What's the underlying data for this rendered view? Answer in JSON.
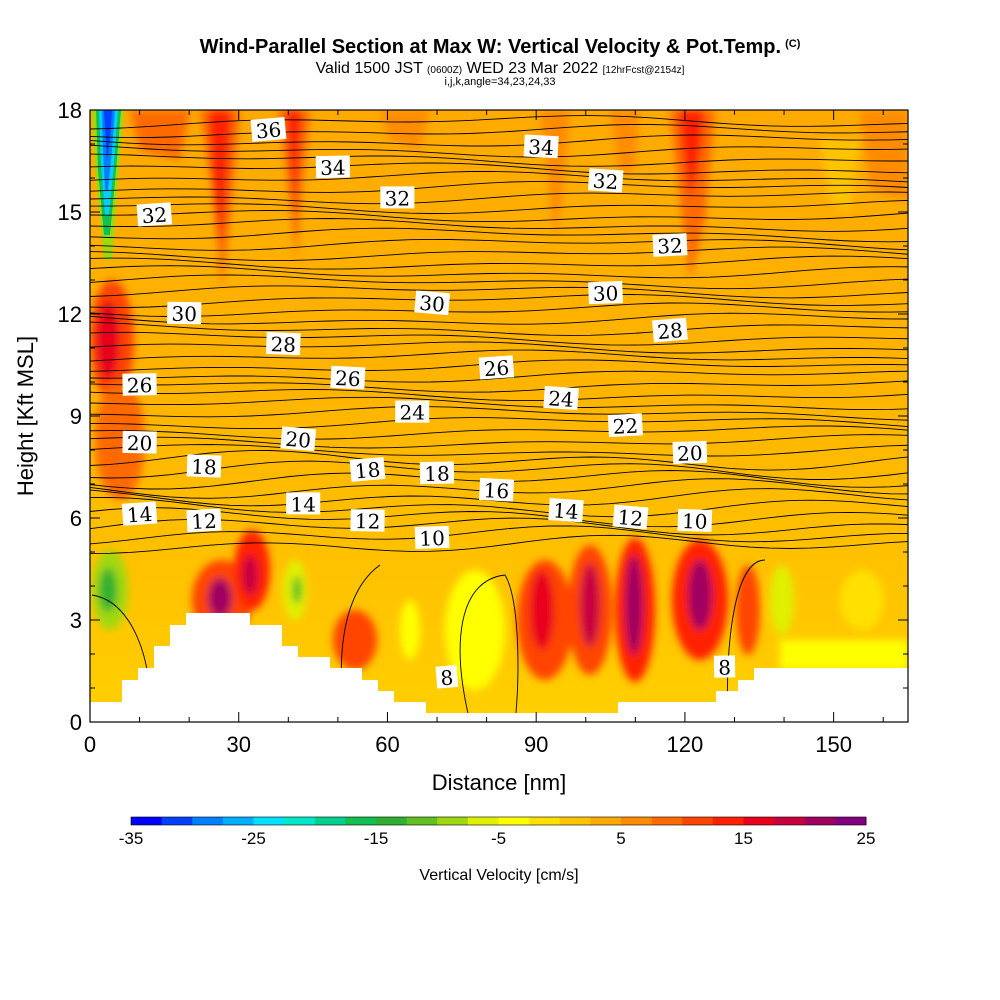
{
  "header": {
    "title": "Wind-Parallel Section at Max W: Vertical Velocity & Pot.Temp.",
    "copyright": "(C)",
    "valid_prefix": "Valid 1500 JST",
    "valid_utc": "(0600Z)",
    "valid_date": "WED 23 Mar 2022",
    "forecast_info": "[12hrFcst@2154z]",
    "indices": "i,j,k,angle=34,23,24,33"
  },
  "colorbar": {
    "label": "Vertical Velocity [cm/s]",
    "tick_labels": [
      "-35",
      "-25",
      "-15",
      "-5",
      "5",
      "15",
      "25"
    ],
    "colors": [
      "#0000ff",
      "#0040ff",
      "#0080ff",
      "#00b0ff",
      "#00e0ff",
      "#00e8c8",
      "#00d090",
      "#10c050",
      "#30b030",
      "#60c020",
      "#a0d810",
      "#e0f000",
      "#ffff00",
      "#ffe000",
      "#ffc400",
      "#ffaa00",
      "#ff8c00",
      "#ff6a00",
      "#ff4400",
      "#ff2000",
      "#e8001c",
      "#c80040",
      "#a00060",
      "#800080"
    ]
  },
  "chart_data": {
    "type": "heatmap",
    "xlabel": "Distance [nm]",
    "ylabel": "Height [Kft MSL]",
    "xlim": [
      0,
      165
    ],
    "ylim": [
      0,
      18
    ],
    "xticks": [
      0,
      30,
      60,
      90,
      120,
      150
    ],
    "yticks": [
      0,
      3,
      6,
      9,
      12,
      15,
      18
    ],
    "field": "Vertical Velocity [cm/s]",
    "field_range": [
      -35,
      25
    ],
    "overlay": "Potential temperature contours",
    "contour_labels": [
      {
        "text": "36",
        "x": 36,
        "y": 17.4
      },
      {
        "text": "34",
        "x": 49,
        "y": 16.3
      },
      {
        "text": "34",
        "x": 91,
        "y": 16.9
      },
      {
        "text": "32",
        "x": 13,
        "y": 14.9
      },
      {
        "text": "32",
        "x": 62,
        "y": 15.4
      },
      {
        "text": "32",
        "x": 104,
        "y": 15.9
      },
      {
        "text": "32",
        "x": 117,
        "y": 14.0
      },
      {
        "text": "30",
        "x": 19,
        "y": 12.0
      },
      {
        "text": "30",
        "x": 69,
        "y": 12.3
      },
      {
        "text": "30",
        "x": 104,
        "y": 12.6
      },
      {
        "text": "28",
        "x": 39,
        "y": 11.1
      },
      {
        "text": "28",
        "x": 117,
        "y": 11.5
      },
      {
        "text": "26",
        "x": 10,
        "y": 9.9
      },
      {
        "text": "26",
        "x": 52,
        "y": 10.1
      },
      {
        "text": "26",
        "x": 82,
        "y": 10.4
      },
      {
        "text": "24",
        "x": 65,
        "y": 9.1
      },
      {
        "text": "24",
        "x": 95,
        "y": 9.5
      },
      {
        "text": "22",
        "x": 108,
        "y": 8.7
      },
      {
        "text": "20",
        "x": 10,
        "y": 8.2
      },
      {
        "text": "20",
        "x": 42,
        "y": 8.3
      },
      {
        "text": "20",
        "x": 121,
        "y": 7.9
      },
      {
        "text": "18",
        "x": 23,
        "y": 7.5
      },
      {
        "text": "18",
        "x": 56,
        "y": 7.4
      },
      {
        "text": "18",
        "x": 70,
        "y": 7.3
      },
      {
        "text": "16",
        "x": 82,
        "y": 6.8
      },
      {
        "text": "14",
        "x": 10,
        "y": 6.1
      },
      {
        "text": "14",
        "x": 43,
        "y": 6.4
      },
      {
        "text": "14",
        "x": 96,
        "y": 6.2
      },
      {
        "text": "12",
        "x": 23,
        "y": 5.9
      },
      {
        "text": "12",
        "x": 56,
        "y": 5.9
      },
      {
        "text": "12",
        "x": 109,
        "y": 6.0
      },
      {
        "text": "10",
        "x": 69,
        "y": 5.4
      },
      {
        "text": "10",
        "x": 122,
        "y": 5.9
      },
      {
        "text": "8",
        "x": 72,
        "y": 1.3
      },
      {
        "text": "8",
        "x": 128,
        "y": 1.6
      }
    ]
  }
}
